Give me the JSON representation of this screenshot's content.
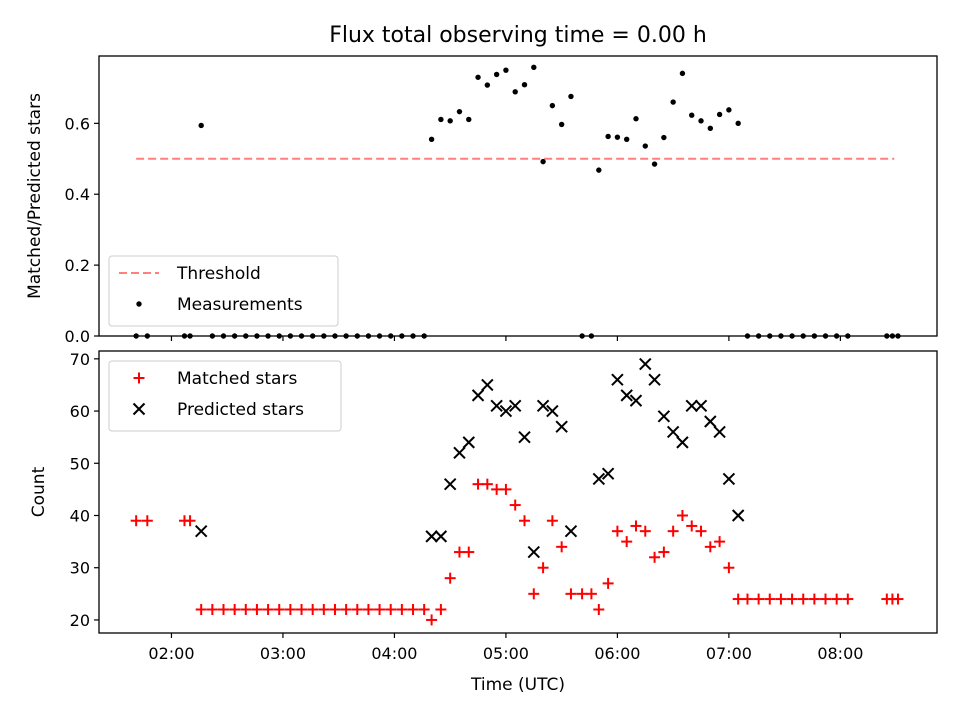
{
  "title": "Flux total observing time = 0.00 h",
  "chart_data": [
    {
      "type": "scatter",
      "ylabel": "Matched/Predicted stars",
      "xlabel": "",
      "xlim": [
        "01:21",
        "08:52"
      ],
      "ylim": [
        0,
        0.79
      ],
      "yticks": [
        0.0,
        0.2,
        0.4,
        0.6
      ],
      "ytick_labels": [
        "0.0",
        "0.2",
        "0.4",
        "0.6"
      ],
      "xticks": [
        "02:00",
        "03:00",
        "04:00",
        "05:00",
        "06:00",
        "07:00",
        "08:00"
      ],
      "grid": false,
      "legend": "lower-left",
      "threshold": {
        "name": "Threshold",
        "value": 0.5,
        "x_start": "01:41",
        "x_end": "08:29",
        "color": "#ff7f7f"
      },
      "series": [
        {
          "name": "Measurements",
          "color": "#000000",
          "marker": "dot",
          "points": [
            [
              "01:41",
              0
            ],
            [
              "01:47",
              0
            ],
            [
              "02:07",
              0
            ],
            [
              "02:10",
              0
            ],
            [
              "02:16",
              0.594
            ],
            [
              "02:22",
              0
            ],
            [
              "02:28",
              0
            ],
            [
              "02:34",
              0
            ],
            [
              "02:40",
              0
            ],
            [
              "02:46",
              0
            ],
            [
              "02:52",
              0
            ],
            [
              "02:58",
              0
            ],
            [
              "03:04",
              0
            ],
            [
              "03:10",
              0
            ],
            [
              "03:16",
              0
            ],
            [
              "03:22",
              0
            ],
            [
              "03:28",
              0
            ],
            [
              "03:34",
              0
            ],
            [
              "03:40",
              0
            ],
            [
              "03:46",
              0
            ],
            [
              "03:52",
              0
            ],
            [
              "03:58",
              0
            ],
            [
              "04:04",
              0
            ],
            [
              "04:10",
              0
            ],
            [
              "04:16",
              0
            ],
            [
              "04:20",
              0.555
            ],
            [
              "04:25",
              0.611
            ],
            [
              "04:30",
              0.607
            ],
            [
              "04:35",
              0.633
            ],
            [
              "04:40",
              0.611
            ],
            [
              "04:45",
              0.73
            ],
            [
              "04:50",
              0.708
            ],
            [
              "04:55",
              0.738
            ],
            [
              "05:00",
              0.75
            ],
            [
              "05:05",
              0.689
            ],
            [
              "05:10",
              0.709
            ],
            [
              "05:15",
              0.758
            ],
            [
              "05:20",
              0.492
            ],
            [
              "05:25",
              0.65
            ],
            [
              "05:30",
              0.597
            ],
            [
              "05:35",
              0.676
            ],
            [
              "05:41",
              0
            ],
            [
              "05:46",
              0
            ],
            [
              "05:50",
              0.468
            ],
            [
              "05:55",
              0.563
            ],
            [
              "06:00",
              0.561
            ],
            [
              "06:05",
              0.555
            ],
            [
              "06:10",
              0.613
            ],
            [
              "06:15",
              0.536
            ],
            [
              "06:20",
              0.485
            ],
            [
              "06:25",
              0.56
            ],
            [
              "06:30",
              0.66
            ],
            [
              "06:35",
              0.741
            ],
            [
              "06:40",
              0.623
            ],
            [
              "06:45",
              0.607
            ],
            [
              "06:50",
              0.586
            ],
            [
              "06:55",
              0.625
            ],
            [
              "07:00",
              0.638
            ],
            [
              "07:05",
              0.6
            ],
            [
              "07:10",
              0
            ],
            [
              "07:16",
              0
            ],
            [
              "07:22",
              0
            ],
            [
              "07:28",
              0
            ],
            [
              "07:34",
              0
            ],
            [
              "07:40",
              0
            ],
            [
              "07:46",
              0
            ],
            [
              "07:52",
              0
            ],
            [
              "07:58",
              0
            ],
            [
              "08:04",
              0
            ],
            [
              "08:25",
              0
            ],
            [
              "08:28",
              0
            ],
            [
              "08:31",
              0
            ]
          ]
        }
      ]
    },
    {
      "type": "scatter",
      "ylabel": "Count",
      "xlabel": "Time (UTC)",
      "xlim": [
        "01:21",
        "08:52"
      ],
      "ylim": [
        17.5,
        71.5
      ],
      "yticks": [
        20,
        30,
        40,
        50,
        60,
        70
      ],
      "ytick_labels": [
        "20",
        "30",
        "40",
        "50",
        "60",
        "70"
      ],
      "xticks": [
        "02:00",
        "03:00",
        "04:00",
        "05:00",
        "06:00",
        "07:00",
        "08:00"
      ],
      "grid": false,
      "legend": "upper-left",
      "series": [
        {
          "name": "Matched stars",
          "color": "#ff0000",
          "marker": "plus",
          "points": [
            [
              "01:41",
              39
            ],
            [
              "01:47",
              39
            ],
            [
              "02:07",
              39
            ],
            [
              "02:10",
              39
            ],
            [
              "02:16",
              22
            ],
            [
              "02:22",
              22
            ],
            [
              "02:28",
              22
            ],
            [
              "02:34",
              22
            ],
            [
              "02:40",
              22
            ],
            [
              "02:46",
              22
            ],
            [
              "02:52",
              22
            ],
            [
              "02:58",
              22
            ],
            [
              "03:04",
              22
            ],
            [
              "03:10",
              22
            ],
            [
              "03:16",
              22
            ],
            [
              "03:22",
              22
            ],
            [
              "03:28",
              22
            ],
            [
              "03:34",
              22
            ],
            [
              "03:40",
              22
            ],
            [
              "03:46",
              22
            ],
            [
              "03:52",
              22
            ],
            [
              "03:58",
              22
            ],
            [
              "04:04",
              22
            ],
            [
              "04:10",
              22
            ],
            [
              "04:16",
              22
            ],
            [
              "04:20",
              20
            ],
            [
              "04:25",
              22
            ],
            [
              "04:30",
              28
            ],
            [
              "04:35",
              33
            ],
            [
              "04:40",
              33
            ],
            [
              "04:45",
              46
            ],
            [
              "04:50",
              46
            ],
            [
              "04:55",
              45
            ],
            [
              "05:00",
              45
            ],
            [
              "05:05",
              42
            ],
            [
              "05:10",
              39
            ],
            [
              "05:15",
              25
            ],
            [
              "05:20",
              30
            ],
            [
              "05:25",
              39
            ],
            [
              "05:30",
              34
            ],
            [
              "05:35",
              25
            ],
            [
              "05:41",
              25
            ],
            [
              "05:46",
              25
            ],
            [
              "05:50",
              22
            ],
            [
              "05:55",
              27
            ],
            [
              "06:00",
              37
            ],
            [
              "06:05",
              35
            ],
            [
              "06:10",
              38
            ],
            [
              "06:15",
              37
            ],
            [
              "06:20",
              32
            ],
            [
              "06:25",
              33
            ],
            [
              "06:30",
              37
            ],
            [
              "06:35",
              40
            ],
            [
              "06:40",
              38
            ],
            [
              "06:45",
              37
            ],
            [
              "06:50",
              34
            ],
            [
              "06:55",
              35
            ],
            [
              "07:00",
              30
            ],
            [
              "07:05",
              24
            ],
            [
              "07:10",
              24
            ],
            [
              "07:16",
              24
            ],
            [
              "07:22",
              24
            ],
            [
              "07:28",
              24
            ],
            [
              "07:34",
              24
            ],
            [
              "07:40",
              24
            ],
            [
              "07:46",
              24
            ],
            [
              "07:52",
              24
            ],
            [
              "07:58",
              24
            ],
            [
              "08:04",
              24
            ],
            [
              "08:25",
              24
            ],
            [
              "08:28",
              24
            ],
            [
              "08:31",
              24
            ]
          ]
        },
        {
          "name": "Predicted stars",
          "color": "#000000",
          "marker": "x",
          "points": [
            [
              "02:16",
              37
            ],
            [
              "04:20",
              36
            ],
            [
              "04:25",
              36
            ],
            [
              "04:30",
              46
            ],
            [
              "04:35",
              52
            ],
            [
              "04:40",
              54
            ],
            [
              "04:45",
              63
            ],
            [
              "04:50",
              65
            ],
            [
              "04:55",
              61
            ],
            [
              "05:00",
              60
            ],
            [
              "05:05",
              61
            ],
            [
              "05:10",
              55
            ],
            [
              "05:15",
              33
            ],
            [
              "05:20",
              61
            ],
            [
              "05:25",
              60
            ],
            [
              "05:30",
              57
            ],
            [
              "05:35",
              37
            ],
            [
              "05:50",
              47
            ],
            [
              "05:55",
              48
            ],
            [
              "06:00",
              66
            ],
            [
              "06:05",
              63
            ],
            [
              "06:10",
              62
            ],
            [
              "06:15",
              69
            ],
            [
              "06:20",
              66
            ],
            [
              "06:25",
              59
            ],
            [
              "06:30",
              56
            ],
            [
              "06:35",
              54
            ],
            [
              "06:40",
              61
            ],
            [
              "06:45",
              61
            ],
            [
              "06:50",
              58
            ],
            [
              "06:55",
              56
            ],
            [
              "07:00",
              47
            ],
            [
              "07:05",
              40
            ]
          ]
        }
      ]
    }
  ]
}
